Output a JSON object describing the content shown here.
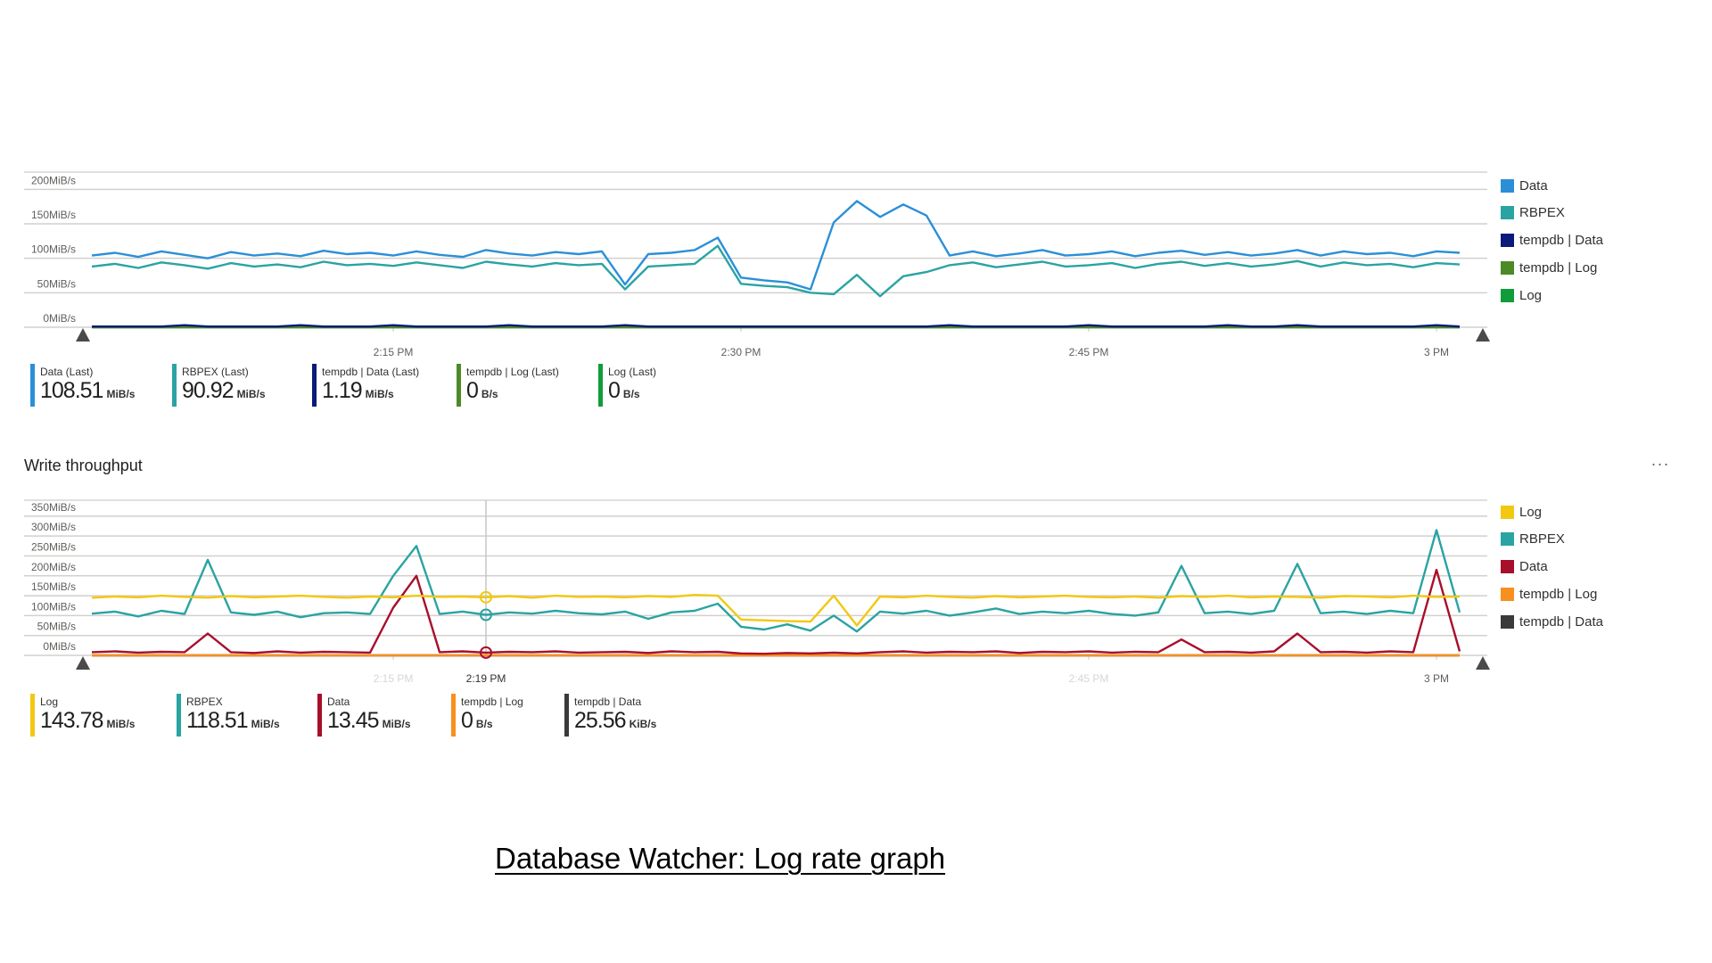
{
  "read_chart": {
    "legend": [
      {
        "name": "Data",
        "color": "#2b8fd8"
      },
      {
        "name": "RBPEX",
        "color": "#2aa3a3"
      },
      {
        "name": "tempdb | Data",
        "color": "#0b1a7a"
      },
      {
        "name": "tempdb | Log",
        "color": "#4c8a26"
      },
      {
        "name": "Log",
        "color": "#109c3a"
      }
    ],
    "summary": [
      {
        "label": "Data (Last)",
        "value": "108.51",
        "unit": "MiB/s",
        "color": "#2b8fd8"
      },
      {
        "label": "RBPEX (Last)",
        "value": "90.92",
        "unit": "MiB/s",
        "color": "#2aa3a3"
      },
      {
        "label": "tempdb | Data (Last)",
        "value": "1.19",
        "unit": "MiB/s",
        "color": "#0b1a7a"
      },
      {
        "label": "tempdb | Log (Last)",
        "value": "0",
        "unit": "B/s",
        "color": "#4c8a26"
      },
      {
        "label": "Log (Last)",
        "value": "0",
        "unit": "B/s",
        "color": "#109c3a"
      }
    ]
  },
  "write_chart": {
    "title": "Write throughput",
    "more_label": "...",
    "legend": [
      {
        "name": "Log",
        "color": "#f2c811"
      },
      {
        "name": "RBPEX",
        "color": "#2aa3a3"
      },
      {
        "name": "Data",
        "color": "#a80f2a"
      },
      {
        "name": "tempdb | Log",
        "color": "#f7901e"
      },
      {
        "name": "tempdb | Data",
        "color": "#3b3a39"
      }
    ],
    "summary": [
      {
        "label": "Log",
        "value": "143.78",
        "unit": "MiB/s",
        "color": "#f2c811"
      },
      {
        "label": "RBPEX",
        "value": "118.51",
        "unit": "MiB/s",
        "color": "#2aa3a3"
      },
      {
        "label": "Data",
        "value": "13.45",
        "unit": "MiB/s",
        "color": "#a80f2a"
      },
      {
        "label": "tempdb | Log",
        "value": "0",
        "unit": "B/s",
        "color": "#f7901e"
      },
      {
        "label": "tempdb | Data",
        "value": "25.56",
        "unit": "KiB/s",
        "color": "#3b3a39"
      }
    ],
    "cursor_label": "2:19 PM"
  },
  "caption": "Database Watcher: Log rate graph",
  "chart_data": [
    {
      "type": "line",
      "title": "",
      "ylim": [
        0,
        225
      ],
      "y_ticks": [
        "0MiB/s",
        "50MiB/s",
        "100MiB/s",
        "150MiB/s",
        "200MiB/s"
      ],
      "y_tick_values": [
        0,
        50,
        100,
        150,
        200
      ],
      "x_ticks": [
        {
          "label": "2:15 PM"
        },
        {
          "label": "2:30 PM"
        },
        {
          "label": "2:45 PM"
        },
        {
          "label": "3 PM"
        }
      ],
      "grid": true,
      "legend_position": "right",
      "x": [
        "2:02 PM",
        "2:03 PM",
        "2:04 PM",
        "2:05 PM",
        "2:06 PM",
        "2:07 PM",
        "2:08 PM",
        "2:09 PM",
        "2:10 PM",
        "2:11 PM",
        "2:12 PM",
        "2:13 PM",
        "2:14 PM",
        "2:15 PM",
        "2:16 PM",
        "2:17 PM",
        "2:18 PM",
        "2:19 PM",
        "2:20 PM",
        "2:21 PM",
        "2:22 PM",
        "2:23 PM",
        "2:24 PM",
        "2:25 PM",
        "2:26 PM",
        "2:27 PM",
        "2:28 PM",
        "2:29 PM",
        "2:30 PM",
        "2:31 PM",
        "2:32 PM",
        "2:33 PM",
        "2:34 PM",
        "2:35 PM",
        "2:36 PM",
        "2:37 PM",
        "2:38 PM",
        "2:39 PM",
        "2:40 PM",
        "2:41 PM",
        "2:42 PM",
        "2:43 PM",
        "2:44 PM",
        "2:45 PM",
        "2:46 PM",
        "2:47 PM",
        "2:48 PM",
        "2:49 PM",
        "2:50 PM",
        "2:51 PM",
        "2:52 PM",
        "2:53 PM",
        "2:54 PM",
        "2:55 PM",
        "2:56 PM",
        "2:57 PM",
        "2:58 PM",
        "2:59 PM",
        "3:00 PM",
        "3:01 PM"
      ],
      "series": [
        {
          "name": "Data",
          "color": "#2b8fd8",
          "values": [
            104,
            108,
            102,
            110,
            105,
            100,
            109,
            104,
            107,
            103,
            111,
            106,
            108,
            104,
            110,
            105,
            102,
            112,
            107,
            104,
            109,
            106,
            110,
            62,
            106,
            108,
            112,
            130,
            72,
            68,
            65,
            55,
            152,
            183,
            160,
            178,
            162,
            104,
            110,
            103,
            107,
            112,
            104,
            106,
            110,
            103,
            108,
            111,
            105,
            109,
            104,
            107,
            112,
            104,
            110,
            106,
            108,
            103,
            110,
            108
          ]
        },
        {
          "name": "RBPEX",
          "color": "#2aa3a3",
          "values": [
            88,
            92,
            86,
            94,
            90,
            85,
            93,
            88,
            91,
            87,
            95,
            90,
            92,
            89,
            94,
            90,
            86,
            95,
            91,
            88,
            93,
            90,
            92,
            55,
            88,
            90,
            92,
            118,
            63,
            60,
            58,
            50,
            48,
            76,
            45,
            74,
            80,
            90,
            94,
            87,
            91,
            95,
            88,
            90,
            93,
            86,
            92,
            95,
            89,
            93,
            88,
            91,
            96,
            88,
            94,
            90,
            92,
            87,
            93,
            91
          ]
        },
        {
          "name": "tempdb | Data",
          "color": "#0b1a7a",
          "values": [
            1,
            1,
            1,
            1,
            3,
            1,
            1,
            1,
            1,
            3,
            1,
            1,
            1,
            3,
            1,
            1,
            1,
            1,
            3,
            1,
            1,
            1,
            1,
            3,
            1,
            1,
            1,
            1,
            1,
            1,
            1,
            1,
            1,
            1,
            1,
            1,
            1,
            3,
            1,
            1,
            1,
            1,
            1,
            3,
            1,
            1,
            1,
            1,
            1,
            3,
            1,
            1,
            3,
            1,
            1,
            1,
            1,
            1,
            3,
            1
          ]
        },
        {
          "name": "tempdb | Log",
          "color": "#4c8a26",
          "values": [
            0,
            0,
            0,
            0,
            0,
            0,
            0,
            0,
            0,
            0,
            0,
            0,
            0,
            0,
            0,
            0,
            0,
            0,
            0,
            0,
            0,
            0,
            0,
            0,
            0,
            0,
            0,
            0,
            0,
            0,
            0,
            0,
            0,
            0,
            0,
            0,
            0,
            0,
            0,
            0,
            0,
            0,
            0,
            0,
            0,
            0,
            0,
            0,
            0,
            0,
            0,
            0,
            0,
            0,
            0,
            0,
            0,
            0,
            0,
            0
          ]
        },
        {
          "name": "Log",
          "color": "#109c3a",
          "values": [
            0,
            0,
            0,
            0,
            0,
            0,
            0,
            0,
            0,
            0,
            0,
            0,
            0,
            0,
            0,
            0,
            0,
            0,
            0,
            0,
            0,
            0,
            0,
            0,
            0,
            0,
            0,
            0,
            0,
            0,
            0,
            0,
            0,
            0,
            0,
            0,
            0,
            0,
            0,
            0,
            0,
            0,
            0,
            0,
            0,
            0,
            0,
            0,
            0,
            0,
            0,
            0,
            0,
            0,
            0,
            0,
            0,
            0,
            0,
            0
          ]
        }
      ]
    },
    {
      "type": "line",
      "title": "Write throughput",
      "ylim": [
        0,
        390
      ],
      "y_ticks": [
        "0MiB/s",
        "50MiB/s",
        "100MiB/s",
        "150MiB/s",
        "200MiB/s",
        "250MiB/s",
        "300MiB/s",
        "350MiB/s"
      ],
      "y_tick_values": [
        0,
        50,
        100,
        150,
        200,
        250,
        300,
        350
      ],
      "x_ticks": [
        {
          "label": "2:15 PM",
          "muted": true
        },
        {
          "label": "2:45 PM",
          "muted": true
        },
        {
          "label": "3 PM",
          "muted": false
        }
      ],
      "cursor": "2:19 PM",
      "grid": true,
      "legend_position": "right",
      "x": [
        "2:02 PM",
        "2:03 PM",
        "2:04 PM",
        "2:05 PM",
        "2:06 PM",
        "2:07 PM",
        "2:08 PM",
        "2:09 PM",
        "2:10 PM",
        "2:11 PM",
        "2:12 PM",
        "2:13 PM",
        "2:14 PM",
        "2:15 PM",
        "2:16 PM",
        "2:17 PM",
        "2:18 PM",
        "2:19 PM",
        "2:20 PM",
        "2:21 PM",
        "2:22 PM",
        "2:23 PM",
        "2:24 PM",
        "2:25 PM",
        "2:26 PM",
        "2:27 PM",
        "2:28 PM",
        "2:29 PM",
        "2:30 PM",
        "2:31 PM",
        "2:32 PM",
        "2:33 PM",
        "2:34 PM",
        "2:35 PM",
        "2:36 PM",
        "2:37 PM",
        "2:38 PM",
        "2:39 PM",
        "2:40 PM",
        "2:41 PM",
        "2:42 PM",
        "2:43 PM",
        "2:44 PM",
        "2:45 PM",
        "2:46 PM",
        "2:47 PM",
        "2:48 PM",
        "2:49 PM",
        "2:50 PM",
        "2:51 PM",
        "2:52 PM",
        "2:53 PM",
        "2:54 PM",
        "2:55 PM",
        "2:56 PM",
        "2:57 PM",
        "2:58 PM",
        "2:59 PM",
        "3:00 PM",
        "3:01 PM"
      ],
      "series": [
        {
          "name": "Log",
          "color": "#f2c811",
          "values": [
            145,
            148,
            146,
            150,
            147,
            145,
            149,
            146,
            148,
            150,
            147,
            145,
            148,
            146,
            150,
            147,
            148,
            146,
            149,
            145,
            150,
            147,
            148,
            146,
            149,
            147,
            152,
            150,
            90,
            88,
            86,
            85,
            150,
            75,
            148,
            146,
            150,
            147,
            145,
            149,
            146,
            148,
            150,
            147,
            146,
            148,
            145,
            149,
            147,
            150,
            146,
            148,
            147,
            145,
            149,
            148,
            146,
            150,
            147,
            148
          ]
        },
        {
          "name": "RBPEX",
          "color": "#2aa3a3",
          "values": [
            105,
            110,
            98,
            112,
            104,
            240,
            108,
            102,
            110,
            96,
            106,
            108,
            104,
            200,
            275,
            104,
            110,
            102,
            108,
            105,
            112,
            106,
            103,
            110,
            92,
            108,
            112,
            130,
            72,
            65,
            78,
            62,
            100,
            60,
            110,
            105,
            112,
            100,
            108,
            118,
            104,
            110,
            106,
            112,
            104,
            100,
            108,
            225,
            106,
            110,
            104,
            112,
            230,
            106,
            110,
            104,
            112,
            106,
            315,
            108
          ]
        },
        {
          "name": "Data",
          "color": "#a80f2a",
          "values": [
            8,
            10,
            7,
            9,
            8,
            55,
            8,
            6,
            10,
            7,
            9,
            8,
            7,
            120,
            200,
            8,
            10,
            7,
            9,
            8,
            10,
            7,
            8,
            9,
            6,
            10,
            8,
            9,
            5,
            4,
            6,
            5,
            7,
            5,
            8,
            10,
            7,
            9,
            8,
            10,
            6,
            9,
            8,
            10,
            7,
            9,
            8,
            40,
            8,
            9,
            7,
            10,
            55,
            8,
            9,
            7,
            10,
            8,
            215,
            10
          ]
        },
        {
          "name": "tempdb | Log",
          "color": "#f7901e",
          "values": [
            0,
            0,
            0,
            0,
            0,
            0,
            0,
            0,
            0,
            0,
            0,
            0,
            0,
            0,
            0,
            0,
            0,
            0,
            0,
            0,
            0,
            0,
            0,
            0,
            0,
            0,
            0,
            0,
            0,
            0,
            0,
            0,
            0,
            0,
            0,
            0,
            0,
            0,
            0,
            0,
            0,
            0,
            0,
            0,
            0,
            0,
            0,
            0,
            0,
            0,
            0,
            0,
            0,
            0,
            0,
            0,
            0,
            0,
            0,
            0
          ]
        },
        {
          "name": "tempdb | Data",
          "color": "#3b3a39",
          "values": [
            0.02,
            0.03,
            0.02,
            0.02,
            0.03,
            0.02,
            0.02,
            0.03,
            0.02,
            0.02,
            0.03,
            0.02,
            0.02,
            0.03,
            0.02,
            0.02,
            0.03,
            0.02,
            0.02,
            0.03,
            0.02,
            0.02,
            0.03,
            0.02,
            0.02,
            0.03,
            0.02,
            0.02,
            0.03,
            0.02,
            0.02,
            0.03,
            0.02,
            0.02,
            0.03,
            0.02,
            0.02,
            0.03,
            0.02,
            0.02,
            0.03,
            0.02,
            0.02,
            0.03,
            0.02,
            0.02,
            0.03,
            0.02,
            0.02,
            0.03,
            0.02,
            0.02,
            0.03,
            0.02,
            0.02,
            0.03,
            0.02,
            0.02,
            0.03,
            0.02
          ]
        }
      ]
    }
  ]
}
